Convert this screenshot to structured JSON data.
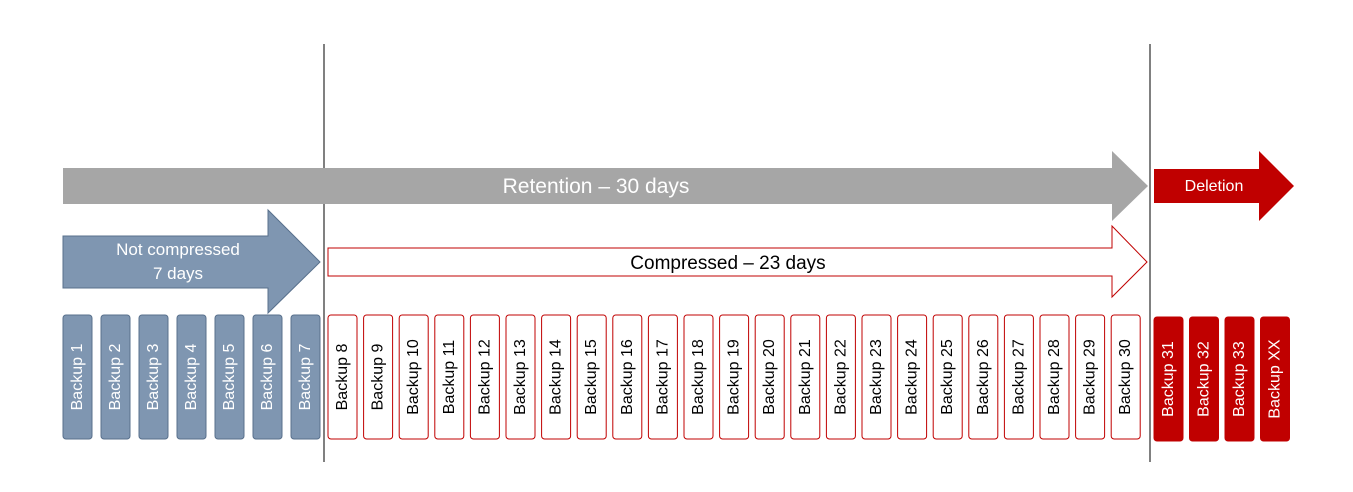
{
  "colors": {
    "gray_arrow": "#a6a6a6",
    "blue_fill": "#7f96b1",
    "blue_stroke": "#58708c",
    "red": "#c00000",
    "divider": "#000000",
    "white_text": "#ffffff",
    "dark_text": "#000000"
  },
  "arrows": {
    "retention": {
      "label": "Retention – 30 days"
    },
    "deletion": {
      "label": "Deletion"
    },
    "not_compressed": {
      "line1": "Not compressed",
      "line2": "7 days"
    },
    "compressed": {
      "label": "Compressed – 23 days"
    }
  },
  "backups": {
    "not_compressed": [
      "Backup 1",
      "Backup 2",
      "Backup 3",
      "Backup 4",
      "Backup 5",
      "Backup 6",
      "Backup 7"
    ],
    "compressed": [
      "Backup 8",
      "Backup 9",
      "Backup 10",
      "Backup 11",
      "Backup 12",
      "Backup 13",
      "Backup 14",
      "Backup 15",
      "Backup 16",
      "Backup 17",
      "Backup 18",
      "Backup 19",
      "Backup 20",
      "Backup 21",
      "Backup 22",
      "Backup 23",
      "Backup 24",
      "Backup 25",
      "Backup 26",
      "Backup 27",
      "Backup 28",
      "Backup 29",
      "Backup 30"
    ],
    "deleted": [
      "Backup 31",
      "Backup 32",
      "Backup 33",
      "Backup XX"
    ]
  }
}
